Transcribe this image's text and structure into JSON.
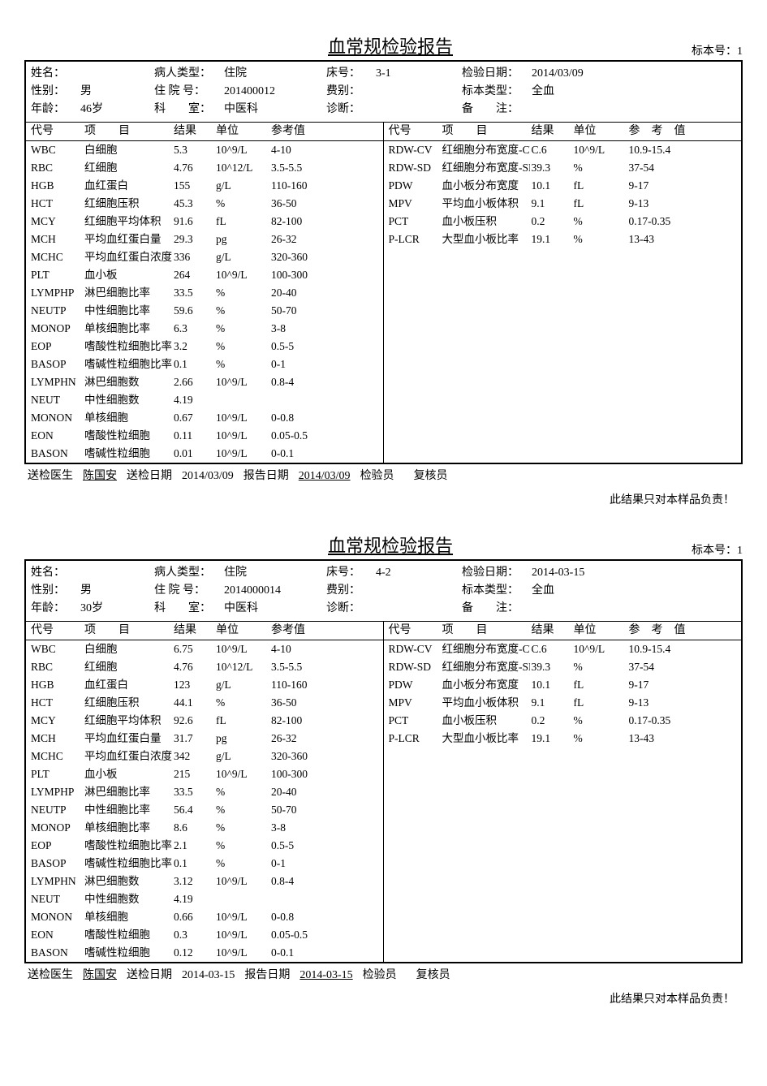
{
  "labels": {
    "title": "血常规检验报告",
    "sample_prefix": "标本号：",
    "name": "姓名：",
    "patient_type": "病人类型：",
    "bed_no": "床号：",
    "test_date": "检验日期：",
    "sex": "性别：",
    "inpatient_no": "住 院 号：",
    "fee_type": "费别：",
    "sample_type": "标本类型：",
    "age": "年龄：",
    "dept": "科　　室：",
    "diagnosis": "诊断：",
    "remark": "备　　注：",
    "code": "代号",
    "item": "项　　目",
    "result": "结果",
    "unit": "单位",
    "ref": "参考值",
    "ref2": "参　考　值",
    "doctor": "送检医生",
    "send_date": "送检日期",
    "report_date": "报告日期",
    "inspector": "检验员",
    "reviewer": "复核员",
    "disclaimer": "此结果只对本样品负责！"
  },
  "reports": [
    {
      "sample_no": "1",
      "info": {
        "name": "",
        "patient_type": "住院",
        "bed_no": "3-1",
        "test_date": "2014/03/09",
        "sex": "男",
        "inpatient_no": "201400012",
        "fee_type": "",
        "sample_type": "全血",
        "age": "46岁",
        "dept": "中医科",
        "diagnosis": "",
        "remark": ""
      },
      "left": [
        {
          "code": "WBC",
          "item": "白细胞",
          "result": "5.3",
          "unit": "10^9/L",
          "ref": "4-10"
        },
        {
          "code": "RBC",
          "item": "红细胞",
          "result": "4.76",
          "unit": "10^12/L",
          "ref": "3.5-5.5"
        },
        {
          "code": "HGB",
          "item": "血红蛋白",
          "result": "155",
          "unit": "g/L",
          "ref": "110-160"
        },
        {
          "code": "HCT",
          "item": "红细胞压积",
          "result": "45.3",
          "unit": "%",
          "ref": "36-50"
        },
        {
          "code": "MCY",
          "item": "红细胞平均体积",
          "result": "91.6",
          "unit": "fL",
          "ref": "82-100"
        },
        {
          "code": "MCH",
          "item": "平均血红蛋白量",
          "result": "29.3",
          "unit": "pg",
          "ref": "26-32"
        },
        {
          "code": "MCHC",
          "item": "平均血红蛋白浓度",
          "result": "336",
          "unit": "g/L",
          "ref": "320-360"
        },
        {
          "code": "PLT",
          "item": "血小板",
          "result": "264",
          "unit": "10^9/L",
          "ref": "100-300"
        },
        {
          "code": "LYMPHP",
          "item": "淋巴细胞比率",
          "result": "33.5",
          "unit": "%",
          "ref": "20-40"
        },
        {
          "code": "NEUTP",
          "item": "中性细胞比率",
          "result": "59.6",
          "unit": "%",
          "ref": "50-70"
        },
        {
          "code": "MONOP",
          "item": "单核细胞比率",
          "result": "6.3",
          "unit": "%",
          "ref": "3-8"
        },
        {
          "code": "EOP",
          "item": "嗜酸性粒细胞比率",
          "result": "3.2",
          "unit": "%",
          "ref": "0.5-5"
        },
        {
          "code": "BASOP",
          "item": "嗜碱性粒细胞比率",
          "result": "0.1",
          "unit": "%",
          "ref": "0-1"
        },
        {
          "code": "LYMPHN",
          "item": "淋巴细胞数",
          "result": "2.66",
          "unit": "10^9/L",
          "ref": "0.8-4"
        },
        {
          "code": "NEUT",
          "item": "中性细胞数",
          "result": "4.19",
          "unit": "",
          "ref": ""
        },
        {
          "code": "MONON",
          "item": "单核细胞",
          "result": "0.67",
          "unit": "10^9/L",
          "ref": "0-0.8"
        },
        {
          "code": "EON",
          "item": "嗜酸性粒细胞",
          "result": "0.11",
          "unit": "10^9/L",
          "ref": "0.05-0.5"
        },
        {
          "code": "BASON",
          "item": "嗜碱性粒细胞",
          "result": "0.01",
          "unit": "10^9/L",
          "ref": "0-0.1"
        }
      ],
      "right": [
        {
          "code": "RDW-CV",
          "item": "红细胞分布宽度-CV",
          "result": "C.6",
          "unit": "10^9/L",
          "ref": "10.9-15.4"
        },
        {
          "code": "RDW-SD",
          "item": "红细胞分布宽度-SD",
          "result": "39.3",
          "unit": "%",
          "ref": "37-54"
        },
        {
          "code": "PDW",
          "item": "血小板分布宽度",
          "result": "10.1",
          "unit": "fL",
          "ref": "9-17"
        },
        {
          "code": "MPV",
          "item": "平均血小板体积",
          "result": "9.1",
          "unit": "fL",
          "ref": "9-13"
        },
        {
          "code": "PCT",
          "item": "血小板压积",
          "result": "0.2",
          "unit": "%",
          "ref": "0.17-0.35"
        },
        {
          "code": "P-LCR",
          "item": "大型血小板比率",
          "result": "19.1",
          "unit": "%",
          "ref": "13-43"
        }
      ],
      "footer": {
        "doctor": "陈国安",
        "send_date": "2014/03/09",
        "report_date": "2014/03/09",
        "inspector": "",
        "reviewer": ""
      }
    },
    {
      "sample_no": "1",
      "info": {
        "name": "",
        "patient_type": "住院",
        "bed_no": "4-2",
        "test_date": "2014-03-15",
        "sex": "男",
        "inpatient_no": "2014000014",
        "fee_type": "",
        "sample_type": "全血",
        "age": "30岁",
        "dept": "中医科",
        "diagnosis": "",
        "remark": ""
      },
      "left": [
        {
          "code": "WBC",
          "item": "白细胞",
          "result": "6.75",
          "unit": "10^9/L",
          "ref": "4-10"
        },
        {
          "code": "RBC",
          "item": "红细胞",
          "result": "4.76",
          "unit": "10^12/L",
          "ref": "3.5-5.5"
        },
        {
          "code": "HGB",
          "item": "血红蛋白",
          "result": "123",
          "unit": "g/L",
          "ref": "110-160"
        },
        {
          "code": "HCT",
          "item": "红细胞压积",
          "result": "44.1",
          "unit": "%",
          "ref": "36-50"
        },
        {
          "code": "MCY",
          "item": "红细胞平均体积",
          "result": "92.6",
          "unit": "fL",
          "ref": "82-100"
        },
        {
          "code": "MCH",
          "item": "平均血红蛋白量",
          "result": "31.7",
          "unit": "pg",
          "ref": "26-32"
        },
        {
          "code": "MCHC",
          "item": "平均血红蛋白浓度",
          "result": "342",
          "unit": "g/L",
          "ref": "320-360"
        },
        {
          "code": "PLT",
          "item": "血小板",
          "result": "215",
          "unit": "10^9/L",
          "ref": "100-300"
        },
        {
          "code": "LYMPHP",
          "item": "淋巴细胞比率",
          "result": "33.5",
          "unit": "%",
          "ref": "20-40"
        },
        {
          "code": "NEUTP",
          "item": "中性细胞比率",
          "result": "56.4",
          "unit": "%",
          "ref": "50-70"
        },
        {
          "code": "MONOP",
          "item": "单核细胞比率",
          "result": "8.6",
          "unit": "%",
          "ref": "3-8"
        },
        {
          "code": "EOP",
          "item": "嗜酸性粒细胞比率",
          "result": "2.1",
          "unit": "%",
          "ref": "0.5-5"
        },
        {
          "code": "BASOP",
          "item": "嗜碱性粒细胞比率",
          "result": "0.1",
          "unit": "%",
          "ref": "0-1"
        },
        {
          "code": "LYMPHN",
          "item": "淋巴细胞数",
          "result": "3.12",
          "unit": "10^9/L",
          "ref": "0.8-4"
        },
        {
          "code": "NEUT",
          "item": "中性细胞数",
          "result": "4.19",
          "unit": "",
          "ref": ""
        },
        {
          "code": "MONON",
          "item": "单核细胞",
          "result": "0.66",
          "unit": "10^9/L",
          "ref": "0-0.8"
        },
        {
          "code": "EON",
          "item": "嗜酸性粒细胞",
          "result": "0.3",
          "unit": "10^9/L",
          "ref": "0.05-0.5"
        },
        {
          "code": "BASON",
          "item": "嗜碱性粒细胞",
          "result": "0.12",
          "unit": "10^9/L",
          "ref": "0-0.1"
        }
      ],
      "right": [
        {
          "code": "RDW-CV",
          "item": "红细胞分布宽度-CV",
          "result": "C.6",
          "unit": "10^9/L",
          "ref": "10.9-15.4"
        },
        {
          "code": "RDW-SD",
          "item": "红细胞分布宽度-SD",
          "result": "39.3",
          "unit": "%",
          "ref": "37-54"
        },
        {
          "code": "PDW",
          "item": "血小板分布宽度",
          "result": "10.1",
          "unit": "fL",
          "ref": "9-17"
        },
        {
          "code": "MPV",
          "item": "平均血小板体积",
          "result": "9.1",
          "unit": "fL",
          "ref": "9-13"
        },
        {
          "code": "PCT",
          "item": "血小板压积",
          "result": "0.2",
          "unit": "%",
          "ref": "0.17-0.35"
        },
        {
          "code": "P-LCR",
          "item": "大型血小板比率",
          "result": "19.1",
          "unit": "%",
          "ref": "13-43"
        }
      ],
      "footer": {
        "doctor": "陈国安",
        "send_date": "2014-03-15",
        "report_date": "2014-03-15",
        "inspector": "",
        "reviewer": ""
      }
    }
  ]
}
